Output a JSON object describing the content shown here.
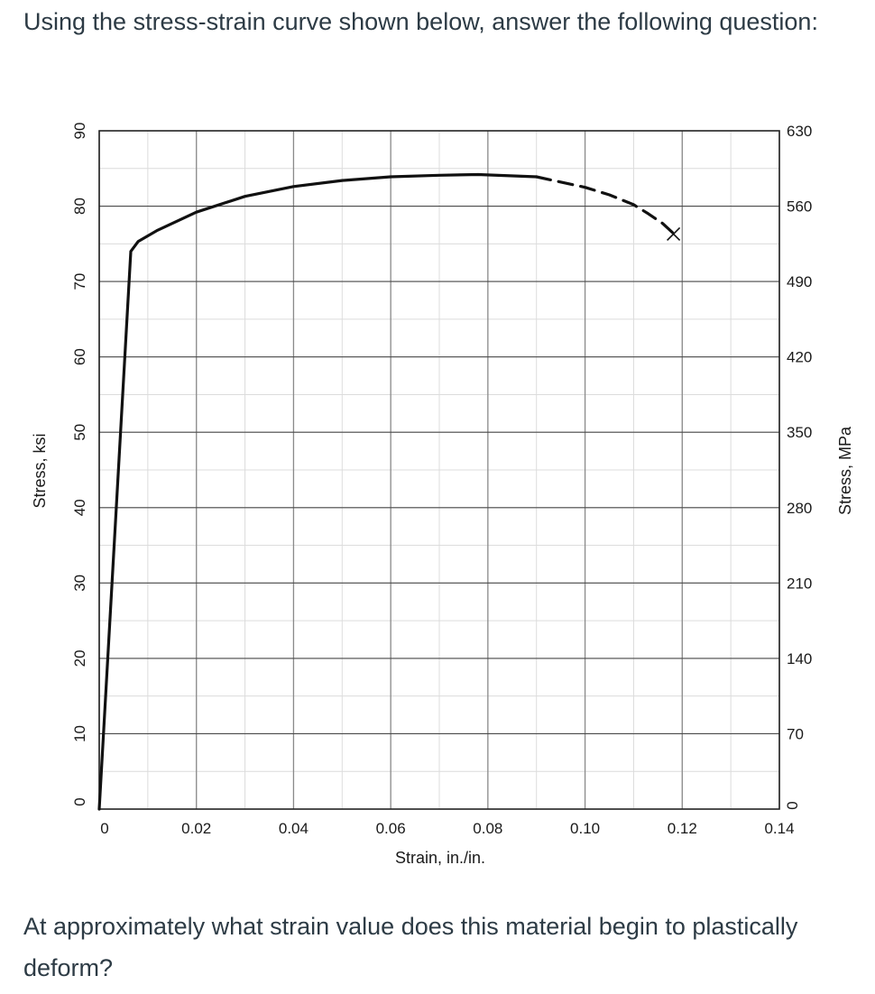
{
  "question": {
    "intro": "Using the stress-strain curve shown below, answer the following question:",
    "prompt": "At approximately what strain value does this material begin to plastically deform?"
  },
  "chart_data": {
    "type": "line",
    "xlabel": "Strain, in./in.",
    "ylabel": "Stress, ksi",
    "y2label": "Stress, MPa",
    "xlim": [
      0,
      0.14
    ],
    "ylim": [
      0,
      90
    ],
    "y2lim": [
      0,
      630
    ],
    "x_ticks": [
      0,
      0.02,
      0.04,
      0.06,
      0.08,
      0.1,
      0.12,
      0.14
    ],
    "x_tick_labels": [
      "0",
      "0.02",
      "0.04",
      "0.06",
      "0.08",
      "0.10",
      "0.12",
      "0.14"
    ],
    "y_ticks": [
      0,
      10,
      20,
      30,
      40,
      50,
      60,
      70,
      80,
      90
    ],
    "y_tick_labels": [
      "0",
      "10",
      "20",
      "30",
      "40",
      "50",
      "60",
      "70",
      "80",
      "90"
    ],
    "y2_ticks": [
      0,
      70,
      140,
      210,
      280,
      350,
      420,
      490,
      560,
      630
    ],
    "y2_tick_labels": [
      "0",
      "70",
      "140",
      "210",
      "280",
      "350",
      "420",
      "490",
      "560",
      "630"
    ],
    "grid": true,
    "series": [
      {
        "style": "solid",
        "x": [
          0,
          0.0065,
          0.008,
          0.012,
          0.02,
          0.03,
          0.04,
          0.05,
          0.06,
          0.07,
          0.078,
          0.09
        ],
        "y": [
          0,
          74,
          75.3,
          76.8,
          79.2,
          81.3,
          82.6,
          83.4,
          83.9,
          84.1,
          84.2,
          83.9
        ]
      },
      {
        "style": "dashed",
        "x": [
          0.09,
          0.1,
          0.105,
          0.11,
          0.113,
          0.116,
          0.118
        ],
        "y": [
          83.9,
          82.5,
          81.5,
          80.2,
          79.0,
          77.7,
          76.5
        ]
      }
    ],
    "fracture_point": {
      "x": 0.1182,
      "y": 76.3,
      "marker": "x"
    }
  }
}
